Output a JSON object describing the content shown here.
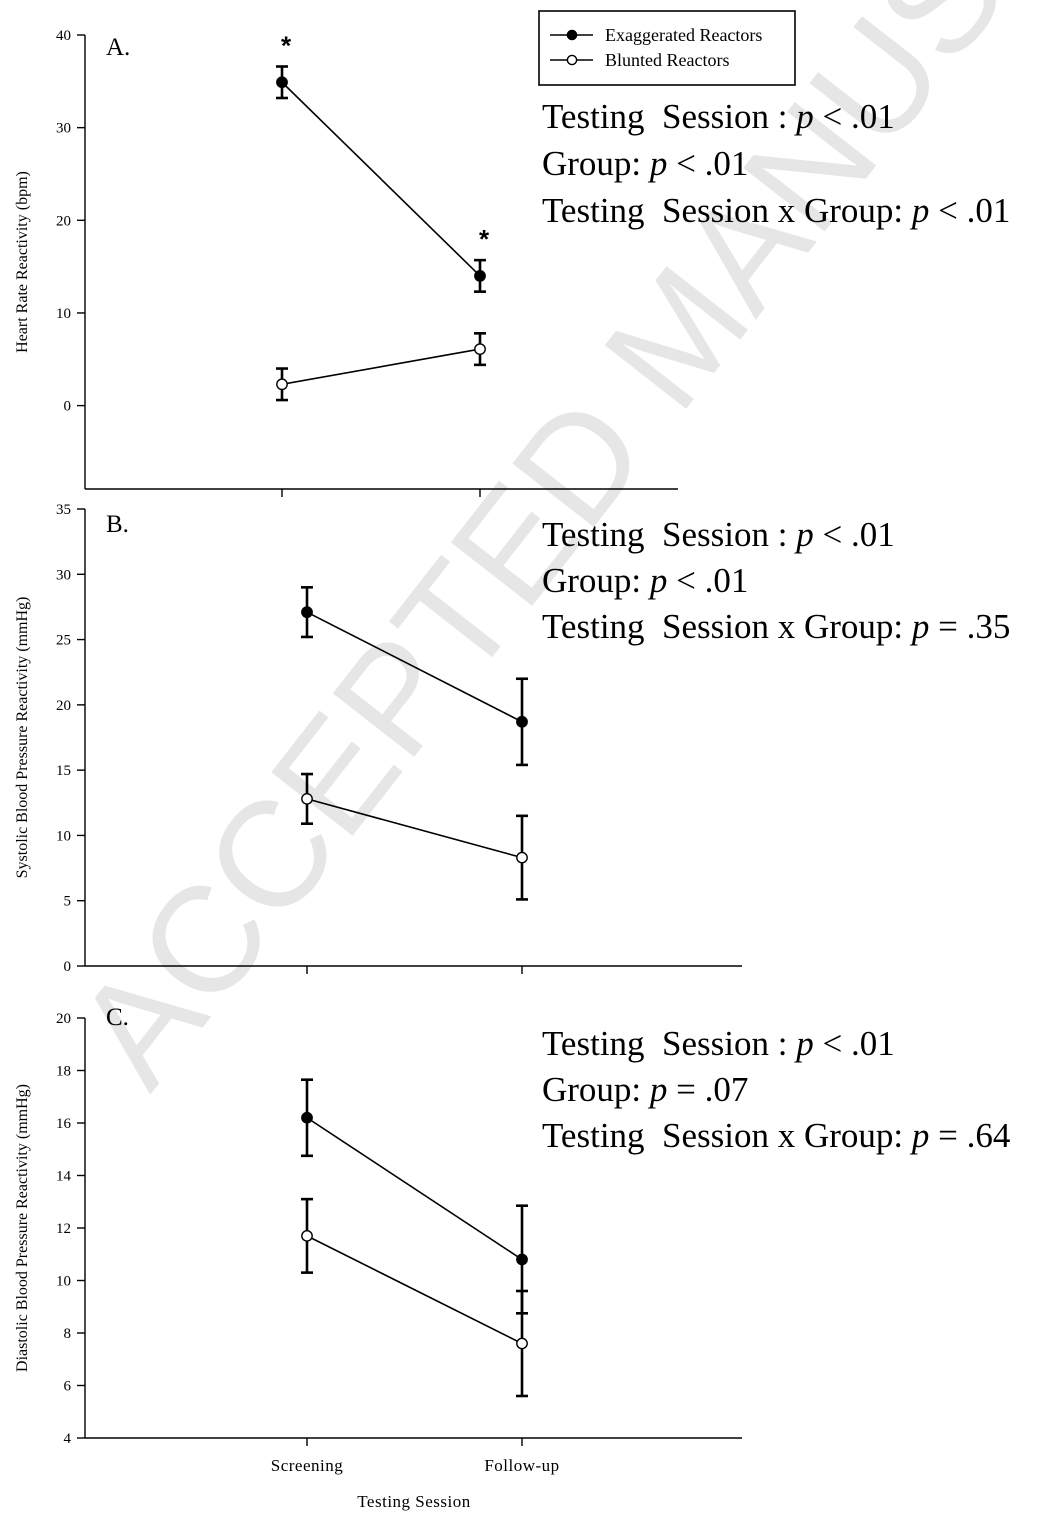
{
  "watermark": "ACCEPTED MANUSCRIPT",
  "legend": {
    "items": [
      {
        "label": "Exaggerated Reactors",
        "marker": "filled"
      },
      {
        "label": "Blunted Reactors",
        "marker": "open"
      }
    ]
  },
  "x_axis": {
    "categories": [
      "Screening",
      "Follow-up"
    ],
    "label": "Testing Session"
  },
  "chart_data": [
    {
      "type": "line",
      "panel": "A.",
      "ylabel": "Heart Rate Reactivity (bpm)",
      "ylim": [
        -9,
        40
      ],
      "yticks": [
        0,
        10,
        20,
        30,
        40
      ],
      "categories": [
        "Screening",
        "Follow-up"
      ],
      "series": [
        {
          "name": "Exaggerated Reactors",
          "values": [
            34.9,
            14.0
          ],
          "errors": [
            1.7,
            1.7
          ],
          "significance": [
            "*",
            "*"
          ]
        },
        {
          "name": "Blunted Reactors",
          "values": [
            2.3,
            6.1
          ],
          "errors": [
            1.7,
            1.7
          ]
        }
      ],
      "stats": [
        [
          {
            "t": "Testing  Session : "
          },
          {
            "t": "p",
            "i": true
          },
          {
            "t": " < .01"
          }
        ],
        [
          {
            "t": "Group: "
          },
          {
            "t": "p",
            "i": true
          },
          {
            "t": " < .01"
          }
        ],
        [
          {
            "t": "Testing  Session x Group: "
          },
          {
            "t": "p",
            "i": true
          },
          {
            "t": " < .01"
          }
        ]
      ]
    },
    {
      "type": "line",
      "panel": "B.",
      "ylabel": "Systolic Blood Pressure Reactivity (mmHg)",
      "ylim": [
        0,
        35
      ],
      "yticks": [
        0,
        5,
        10,
        15,
        20,
        25,
        30,
        35
      ],
      "categories": [
        "Screening",
        "Follow-up"
      ],
      "series": [
        {
          "name": "Exaggerated Reactors",
          "values": [
            27.1,
            18.7
          ],
          "errors": [
            1.9,
            3.3
          ]
        },
        {
          "name": "Blunted Reactors",
          "values": [
            12.8,
            8.3
          ],
          "errors": [
            1.9,
            3.2
          ]
        }
      ],
      "stats": [
        [
          {
            "t": "Testing  Session : "
          },
          {
            "t": "p",
            "i": true
          },
          {
            "t": " < .01"
          }
        ],
        [
          {
            "t": "Group: "
          },
          {
            "t": "p",
            "i": true
          },
          {
            "t": " < .01"
          }
        ],
        [
          {
            "t": "Testing  Session x Group: "
          },
          {
            "t": "p",
            "i": true
          },
          {
            "t": " = .35"
          }
        ]
      ]
    },
    {
      "type": "line",
      "panel": "C.",
      "ylabel": "Diastolic Blood Pressure Reactivity (mmHg)",
      "ylim": [
        4,
        20
      ],
      "yticks": [
        4,
        6,
        8,
        10,
        12,
        14,
        16,
        18,
        20
      ],
      "categories": [
        "Screening",
        "Follow-up"
      ],
      "series": [
        {
          "name": "Exaggerated Reactors",
          "values": [
            16.2,
            10.8
          ],
          "errors": [
            1.45,
            2.05
          ]
        },
        {
          "name": "Blunted Reactors",
          "values": [
            11.7,
            7.6
          ],
          "errors": [
            1.4,
            2.0
          ]
        }
      ],
      "stats": [
        [
          {
            "t": "Testing  Session : "
          },
          {
            "t": "p",
            "i": true
          },
          {
            "t": " < .01"
          }
        ],
        [
          {
            "t": "Group: "
          },
          {
            "t": "p",
            "i": true
          },
          {
            "t": " = .07"
          }
        ],
        [
          {
            "t": "Testing  Session x Group: "
          },
          {
            "t": "p",
            "i": true
          },
          {
            "t": " = .64"
          }
        ]
      ]
    }
  ]
}
